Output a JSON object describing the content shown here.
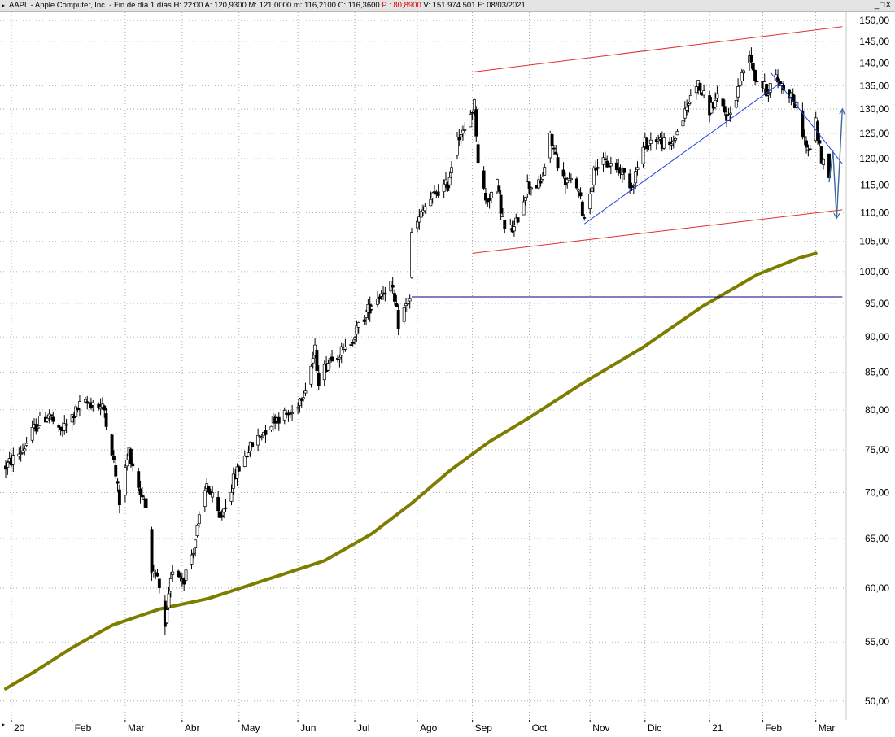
{
  "header": {
    "menu_icon": "triangle-right-icon",
    "prefix": "AAPL - Apple Computer, Inc. - Fin de día 1 días",
    "h": "H: 22:00",
    "a": "A: 120,9300",
    "m": "M: 121,0000",
    "min": "m: 116,2100",
    "c": "C: 116,3600",
    "p": "P : 80,8900",
    "v": "V: 151.974.501",
    "f": "F: 08/03/2021",
    "window_buttons": "_□X"
  },
  "chart_data": {
    "type": "candlestick",
    "symbol": "AAPL",
    "y_scale": "log",
    "ylim": [
      48.5,
      152
    ],
    "y_ticks": [
      150,
      145,
      140,
      135,
      130,
      125,
      120,
      115,
      110,
      105,
      100,
      95,
      90,
      85,
      80,
      75,
      70,
      65,
      60,
      55,
      50
    ],
    "y_tick_labels": [
      "150,00",
      "145,00",
      "140,00",
      "135,00",
      "130,00",
      "125,00",
      "120,00",
      "115,00",
      "110,00",
      "105,00",
      "100,00",
      "95,00",
      "90,00",
      "85,00",
      "80,00",
      "75,00",
      "70,00",
      "65,00",
      "60,00",
      "55,00",
      "50,00"
    ],
    "x_ticks": [
      {
        "label": "20",
        "date": "2020-01-02"
      },
      {
        "label": "Feb",
        "date": "2020-02-03"
      },
      {
        "label": "Mar",
        "date": "2020-03-02"
      },
      {
        "label": "Abr",
        "date": "2020-04-01"
      },
      {
        "label": "May",
        "date": "2020-05-01"
      },
      {
        "label": "Jun",
        "date": "2020-06-01"
      },
      {
        "label": "Jul",
        "date": "2020-07-01"
      },
      {
        "label": "Ago",
        "date": "2020-08-03"
      },
      {
        "label": "Sep",
        "date": "2020-09-01"
      },
      {
        "label": "Oct",
        "date": "2020-10-01"
      },
      {
        "label": "Nov",
        "date": "2020-11-02"
      },
      {
        "label": "Dic",
        "date": "2020-12-01"
      },
      {
        "label": "21",
        "date": "2021-01-04"
      },
      {
        "label": "Feb",
        "date": "2021-02-01"
      },
      {
        "label": "Mar",
        "date": "2021-03-01"
      }
    ],
    "grid": true,
    "price_path": [
      [
        "2019-12-30",
        73
      ],
      [
        "2020-01-08",
        75
      ],
      [
        "2020-01-15",
        78
      ],
      [
        "2020-01-22",
        79.5
      ],
      [
        "2020-01-27",
        77
      ],
      [
        "2020-01-31",
        78
      ],
      [
        "2020-02-07",
        80.5
      ],
      [
        "2020-02-14",
        81
      ],
      [
        "2020-02-20",
        80
      ],
      [
        "2020-02-24",
        75
      ],
      [
        "2020-02-28",
        69
      ],
      [
        "2020-03-04",
        75
      ],
      [
        "2020-03-10",
        70
      ],
      [
        "2020-03-13",
        69
      ],
      [
        "2020-03-16",
        61
      ],
      [
        "2020-03-19",
        61
      ],
      [
        "2020-03-23",
        56
      ],
      [
        "2020-03-27",
        62
      ],
      [
        "2020-04-02",
        61
      ],
      [
        "2020-04-07",
        64
      ],
      [
        "2020-04-14",
        71
      ],
      [
        "2020-04-21",
        67
      ],
      [
        "2020-04-29",
        72
      ],
      [
        "2020-05-06",
        75
      ],
      [
        "2020-05-13",
        77
      ],
      [
        "2020-05-20",
        79
      ],
      [
        "2020-05-29",
        79.5
      ],
      [
        "2020-06-05",
        83
      ],
      [
        "2020-06-10",
        88
      ],
      [
        "2020-06-12",
        84
      ],
      [
        "2020-06-19",
        87.5
      ],
      [
        "2020-06-26",
        88
      ],
      [
        "2020-07-06",
        93
      ],
      [
        "2020-07-10",
        95
      ],
      [
        "2020-07-16",
        97
      ],
      [
        "2020-07-20",
        98
      ],
      [
        "2020-07-24",
        92
      ],
      [
        "2020-07-30",
        96
      ],
      [
        "2020-07-31",
        106
      ],
      [
        "2020-08-07",
        111
      ],
      [
        "2020-08-14",
        114
      ],
      [
        "2020-08-19",
        115
      ],
      [
        "2020-08-24",
        125
      ],
      [
        "2020-08-28",
        125
      ],
      [
        "2020-08-31",
        129
      ],
      [
        "2020-09-02",
        131
      ],
      [
        "2020-09-04",
        120
      ],
      [
        "2020-09-08",
        112
      ],
      [
        "2020-09-10",
        113
      ],
      [
        "2020-09-14",
        115
      ],
      [
        "2020-09-18",
        107
      ],
      [
        "2020-09-23",
        107
      ],
      [
        "2020-09-30",
        115
      ],
      [
        "2020-10-07",
        115
      ],
      [
        "2020-10-12",
        124
      ],
      [
        "2020-10-19",
        116
      ],
      [
        "2020-10-26",
        115
      ],
      [
        "2020-10-30",
        109
      ],
      [
        "2020-11-05",
        119
      ],
      [
        "2020-11-12",
        119
      ],
      [
        "2020-11-18",
        118
      ],
      [
        "2020-11-24",
        115
      ],
      [
        "2020-12-01",
        123
      ],
      [
        "2020-12-07",
        124
      ],
      [
        "2020-12-14",
        122
      ],
      [
        "2020-12-21",
        128
      ],
      [
        "2020-12-28",
        136
      ],
      [
        "2021-01-04",
        130
      ],
      [
        "2021-01-08",
        132
      ],
      [
        "2021-01-14",
        128
      ],
      [
        "2021-01-21",
        137
      ],
      [
        "2021-01-25",
        143
      ],
      [
        "2021-01-28",
        137
      ],
      [
        "2021-02-03",
        134
      ],
      [
        "2021-02-08",
        136.5
      ],
      [
        "2021-02-16",
        133
      ],
      [
        "2021-02-19",
        130
      ],
      [
        "2021-02-25",
        121
      ],
      [
        "2021-03-01",
        127
      ],
      [
        "2021-03-04",
        120
      ],
      [
        "2021-03-08",
        116.36
      ]
    ],
    "moving_average": {
      "color": "#7d7d00",
      "points": [
        [
          "2019-12-30",
          51
        ],
        [
          "2020-01-15",
          52.5
        ],
        [
          "2020-02-03",
          54.5
        ],
        [
          "2020-02-24",
          56.5
        ],
        [
          "2020-03-20",
          58
        ],
        [
          "2020-04-15",
          59
        ],
        [
          "2020-05-15",
          60.8
        ],
        [
          "2020-06-15",
          62.7
        ],
        [
          "2020-07-10",
          65.5
        ],
        [
          "2020-07-31",
          68.8
        ],
        [
          "2020-08-20",
          72.5
        ],
        [
          "2020-09-10",
          76
        ],
        [
          "2020-10-01",
          79
        ],
        [
          "2020-10-29",
          83.5
        ],
        [
          "2020-11-30",
          88.5
        ],
        [
          "2020-12-31",
          94.5
        ],
        [
          "2021-01-29",
          99.5
        ],
        [
          "2021-02-20",
          102.2
        ],
        [
          "2021-03-01",
          103
        ]
      ]
    },
    "annotations": {
      "upper_channel": {
        "color": "#e03030",
        "from": [
          "2020-09-01",
          138
        ],
        "to": [
          "2021-03-15",
          148.5
        ]
      },
      "lower_channel": {
        "color": "#e03030",
        "from": [
          "2020-09-01",
          103
        ],
        "to": [
          "2021-03-15",
          110.5
        ]
      },
      "support_level": {
        "color": "#000080",
        "from": [
          "2020-07-31",
          96
        ],
        "to": [
          "2021-03-15",
          96
        ],
        "value": 96
      },
      "blue_uptrend": {
        "color": "#2040e0",
        "from": [
          "2020-10-30",
          108
        ],
        "to": [
          "2021-02-10",
          135.5
        ]
      },
      "blue_downtrend": {
        "color": "#2040e0",
        "from": [
          "2021-02-05",
          138
        ],
        "to": [
          "2021-03-15",
          119
        ]
      },
      "projection_arrow": {
        "color": "#3a6aa0",
        "points": [
          [
            "2021-03-08",
            115.5
          ],
          [
            "2021-03-10",
            121.5
          ],
          [
            "2021-03-12",
            109
          ],
          [
            "2021-03-15",
            130
          ]
        ]
      }
    }
  }
}
